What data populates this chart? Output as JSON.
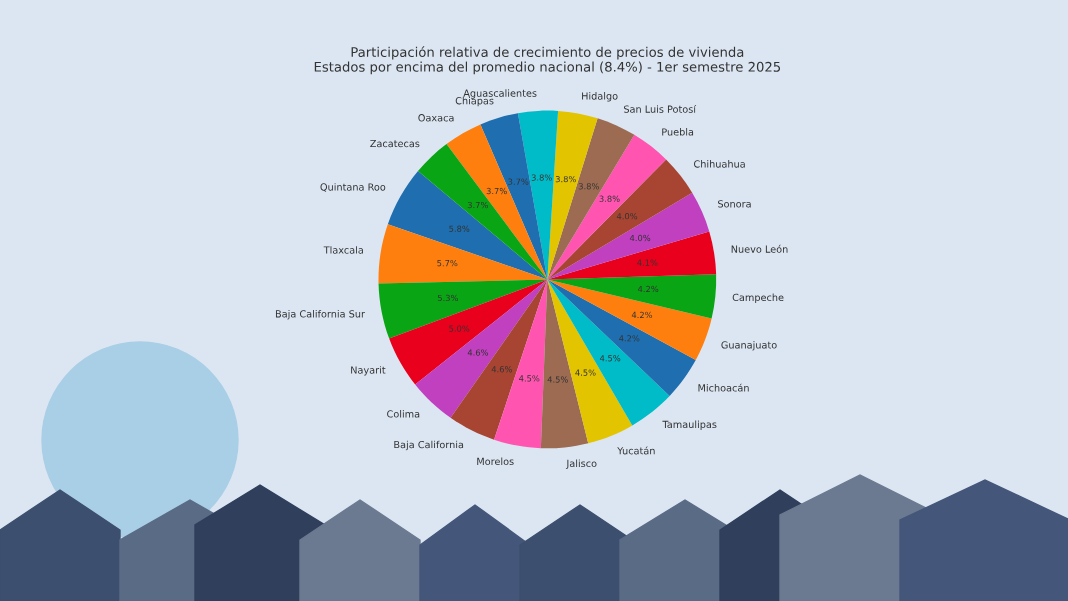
{
  "chart_data": {
    "type": "pie",
    "title": "Participación relativa de crecimiento de precios de vivienda\nEstados por encima del promedio nacional (8.4%) - 1er semestre 2025",
    "categories": [
      "Quintana Roo",
      "Tlaxcala",
      "Baja California Sur",
      "Nayarit",
      "Colima",
      "Baja California",
      "Morelos",
      "Jalisco",
      "Yucatán",
      "Tamaulipas",
      "Michoacán",
      "Guanajuato",
      "Campeche",
      "Nuevo León",
      "Sonora",
      "Chihuahua",
      "Puebla",
      "San Luis Potosí",
      "Hidalgo",
      "Aguascalientes",
      "Chiapas",
      "Oaxaca",
      "Zacatecas"
    ],
    "values": [
      5.8,
      5.7,
      5.3,
      5.0,
      4.6,
      4.6,
      4.5,
      4.5,
      4.5,
      4.5,
      4.2,
      4.2,
      4.2,
      4.1,
      4.0,
      4.0,
      3.8,
      3.8,
      3.8,
      3.8,
      3.7,
      3.7,
      3.7
    ],
    "colors": [
      "#1f6fb0",
      "#ff7f0e",
      "#0aa515",
      "#e8001c",
      "#c040c0",
      "#a84432",
      "#ff55b0",
      "#9c6b52",
      "#e2c400",
      "#00bcc8",
      "#1f6fb0",
      "#ff7f0e",
      "#0aa515",
      "#e8001c",
      "#c040c0",
      "#a84432",
      "#ff55b0",
      "#9c6b52",
      "#e2c400",
      "#00bcc8",
      "#1f6fb0",
      "#ff7f0e",
      "#0aa515"
    ],
    "value_labels": [
      "5.8%",
      "5.7%",
      "5.3%",
      "5.0%",
      "4.6%",
      "4.6%",
      "4.5%",
      "4.5%",
      "4.5%",
      "4.5%",
      "4.2%",
      "4.2%",
      "4.2%",
      "4.1%",
      "4.0%",
      "4.0%",
      "3.8%",
      "3.8%",
      "3.8%",
      "3.8%",
      "3.7%",
      "3.7%",
      "3.7%"
    ]
  }
}
